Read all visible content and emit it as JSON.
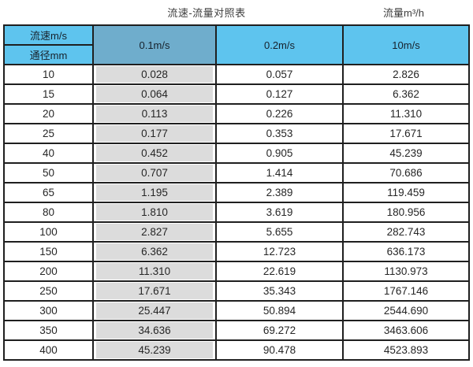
{
  "page": {
    "title": "流速-流量对照表",
    "unit_label": "流量m³/h"
  },
  "table": {
    "corner_top": "流速m/s",
    "corner_bottom": "通径mm",
    "velocity_columns": [
      "0.1m/s",
      "0.2m/s",
      "10m/s"
    ],
    "rows": [
      {
        "dn": "10",
        "values": [
          "0.028",
          "0.057",
          "2.826"
        ]
      },
      {
        "dn": "15",
        "values": [
          "0.064",
          "0.127",
          "6.362"
        ]
      },
      {
        "dn": "20",
        "values": [
          "0.113",
          "0.226",
          "11.310"
        ]
      },
      {
        "dn": "25",
        "values": [
          "0.177",
          "0.353",
          "17.671"
        ]
      },
      {
        "dn": "40",
        "values": [
          "0.452",
          "0.905",
          "45.239"
        ]
      },
      {
        "dn": "50",
        "values": [
          "0.707",
          "1.414",
          "70.686"
        ]
      },
      {
        "dn": "65",
        "values": [
          "1.195",
          "2.389",
          "119.459"
        ]
      },
      {
        "dn": "80",
        "values": [
          "1.810",
          "3.619",
          "180.956"
        ]
      },
      {
        "dn": "100",
        "values": [
          "2.827",
          "5.655",
          "282.743"
        ]
      },
      {
        "dn": "150",
        "values": [
          "6.362",
          "12.723",
          "636.173"
        ]
      },
      {
        "dn": "200",
        "values": [
          "11.310",
          "22.619",
          "1130.973"
        ]
      },
      {
        "dn": "250",
        "values": [
          "17.671",
          "35.343",
          "1767.146"
        ]
      },
      {
        "dn": "300",
        "values": [
          "25.447",
          "50.894",
          "2544.690"
        ]
      },
      {
        "dn": "350",
        "values": [
          "34.636",
          "69.272",
          "3463.606"
        ]
      },
      {
        "dn": "400",
        "values": [
          "45.239",
          "90.478",
          "4523.893"
        ]
      }
    ]
  },
  "colors": {
    "header_blue": "#5ec4ee",
    "header_blue_muted": "#6fadcc",
    "shaded_column_gray": "#dcdcdc",
    "border": "#1f1f1f"
  },
  "chart_data": {
    "type": "table",
    "title": "流速-流量对照表",
    "ylabel": "流量m³/h",
    "row_header": "通径mm",
    "column_header": "流速m/s",
    "columns": [
      "0.1m/s",
      "0.2m/s",
      "10m/s"
    ],
    "diameters_mm": [
      10,
      15,
      20,
      25,
      40,
      50,
      65,
      80,
      100,
      150,
      200,
      250,
      300,
      350,
      400
    ],
    "values": [
      [
        0.028,
        0.057,
        2.826
      ],
      [
        0.064,
        0.127,
        6.362
      ],
      [
        0.113,
        0.226,
        11.31
      ],
      [
        0.177,
        0.353,
        17.671
      ],
      [
        0.452,
        0.905,
        45.239
      ],
      [
        0.707,
        1.414,
        70.686
      ],
      [
        1.195,
        2.389,
        119.459
      ],
      [
        1.81,
        3.619,
        180.956
      ],
      [
        2.827,
        5.655,
        282.743
      ],
      [
        6.362,
        12.723,
        636.173
      ],
      [
        11.31,
        22.619,
        1130.973
      ],
      [
        17.671,
        35.343,
        1767.146
      ],
      [
        25.447,
        50.894,
        2544.69
      ],
      [
        34.636,
        69.272,
        3463.606
      ],
      [
        45.239,
        90.478,
        4523.893
      ]
    ]
  }
}
